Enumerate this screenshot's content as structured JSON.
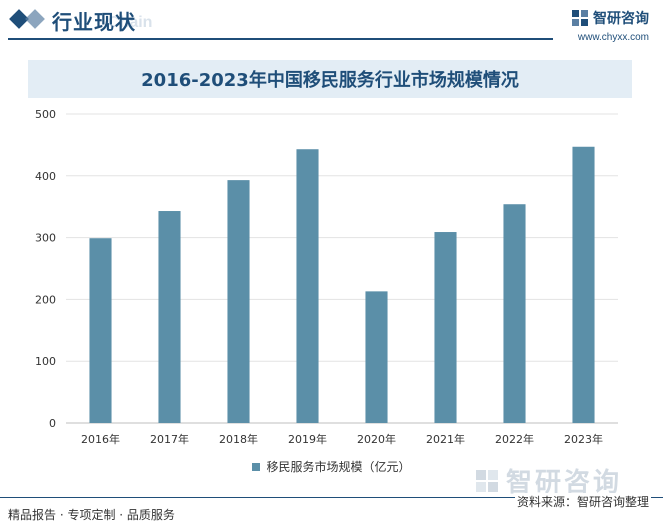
{
  "header": {
    "section_title": "行业现状",
    "watermark_text": "Chain",
    "brand_name": "智研咨询",
    "brand_url": "www.chyxx.com"
  },
  "chart_data": {
    "type": "bar",
    "title": "2016-2023年中国移民服务行业市场规模情况",
    "categories": [
      "2016年",
      "2017年",
      "2018年",
      "2019年",
      "2020年",
      "2021年",
      "2022年",
      "2023年"
    ],
    "series": [
      {
        "name": "移民服务市场规模（亿元）",
        "values": [
          299,
          343,
          393,
          443,
          213,
          309,
          354,
          447
        ]
      }
    ],
    "ylim": [
      0,
      500
    ],
    "yticks": [
      0,
      100,
      200,
      300,
      400,
      500
    ],
    "grid": true,
    "legend": "bottom",
    "bar_color": "#5b8fa8"
  },
  "watermark_logo": "智研咨询",
  "footer": {
    "left": "精品报告 · 专项定制 · 品质服务",
    "source": "资料来源：智研咨询整理"
  }
}
